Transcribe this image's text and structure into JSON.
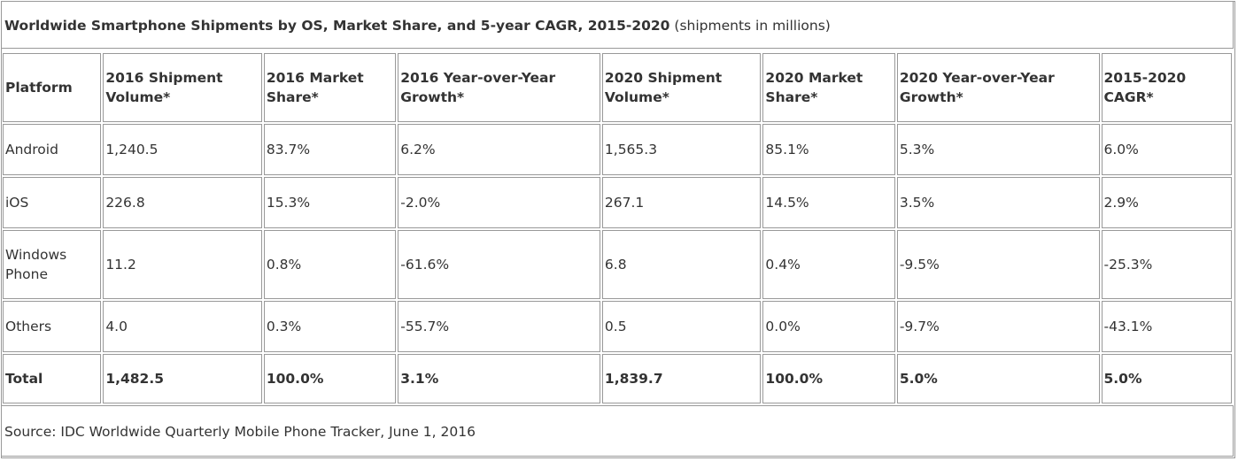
{
  "title": {
    "bold": "Worldwide Smartphone Shipments by OS, Market Share, and 5-year CAGR, 2015-2020",
    "suffix": " (shipments in millions)"
  },
  "table": {
    "headers": [
      "Platform",
      "2016 Shipment Volume*",
      "2016 Market Share*",
      "2016 Year-over-Year Growth*",
      "2020 Shipment Volume*",
      "2020 Market Share*",
      "2020 Year-over-Year Growth*",
      "2015-2020 CAGR*"
    ],
    "rows": [
      [
        "Android",
        "1,240.5",
        "83.7%",
        "6.2%",
        "1,565.3",
        "85.1%",
        "5.3%",
        "6.0%"
      ],
      [
        "iOS",
        "226.8",
        "15.3%",
        "-2.0%",
        "267.1",
        "14.5%",
        "3.5%",
        "2.9%"
      ],
      [
        "Windows Phone",
        "11.2",
        "0.8%",
        "-61.6%",
        "6.8",
        "0.4%",
        "-9.5%",
        "-25.3%"
      ],
      [
        "Others",
        "4.0",
        "0.3%",
        "-55.7%",
        "0.5",
        "0.0%",
        "-9.7%",
        "-43.1%"
      ]
    ],
    "total": [
      "Total",
      "1,482.5",
      "100.0%",
      "3.1%",
      "1,839.7",
      "100.0%",
      "5.0%",
      "5.0%"
    ]
  },
  "source": "Source: IDC Worldwide Quarterly Mobile Phone Tracker, June 1, 2016"
}
